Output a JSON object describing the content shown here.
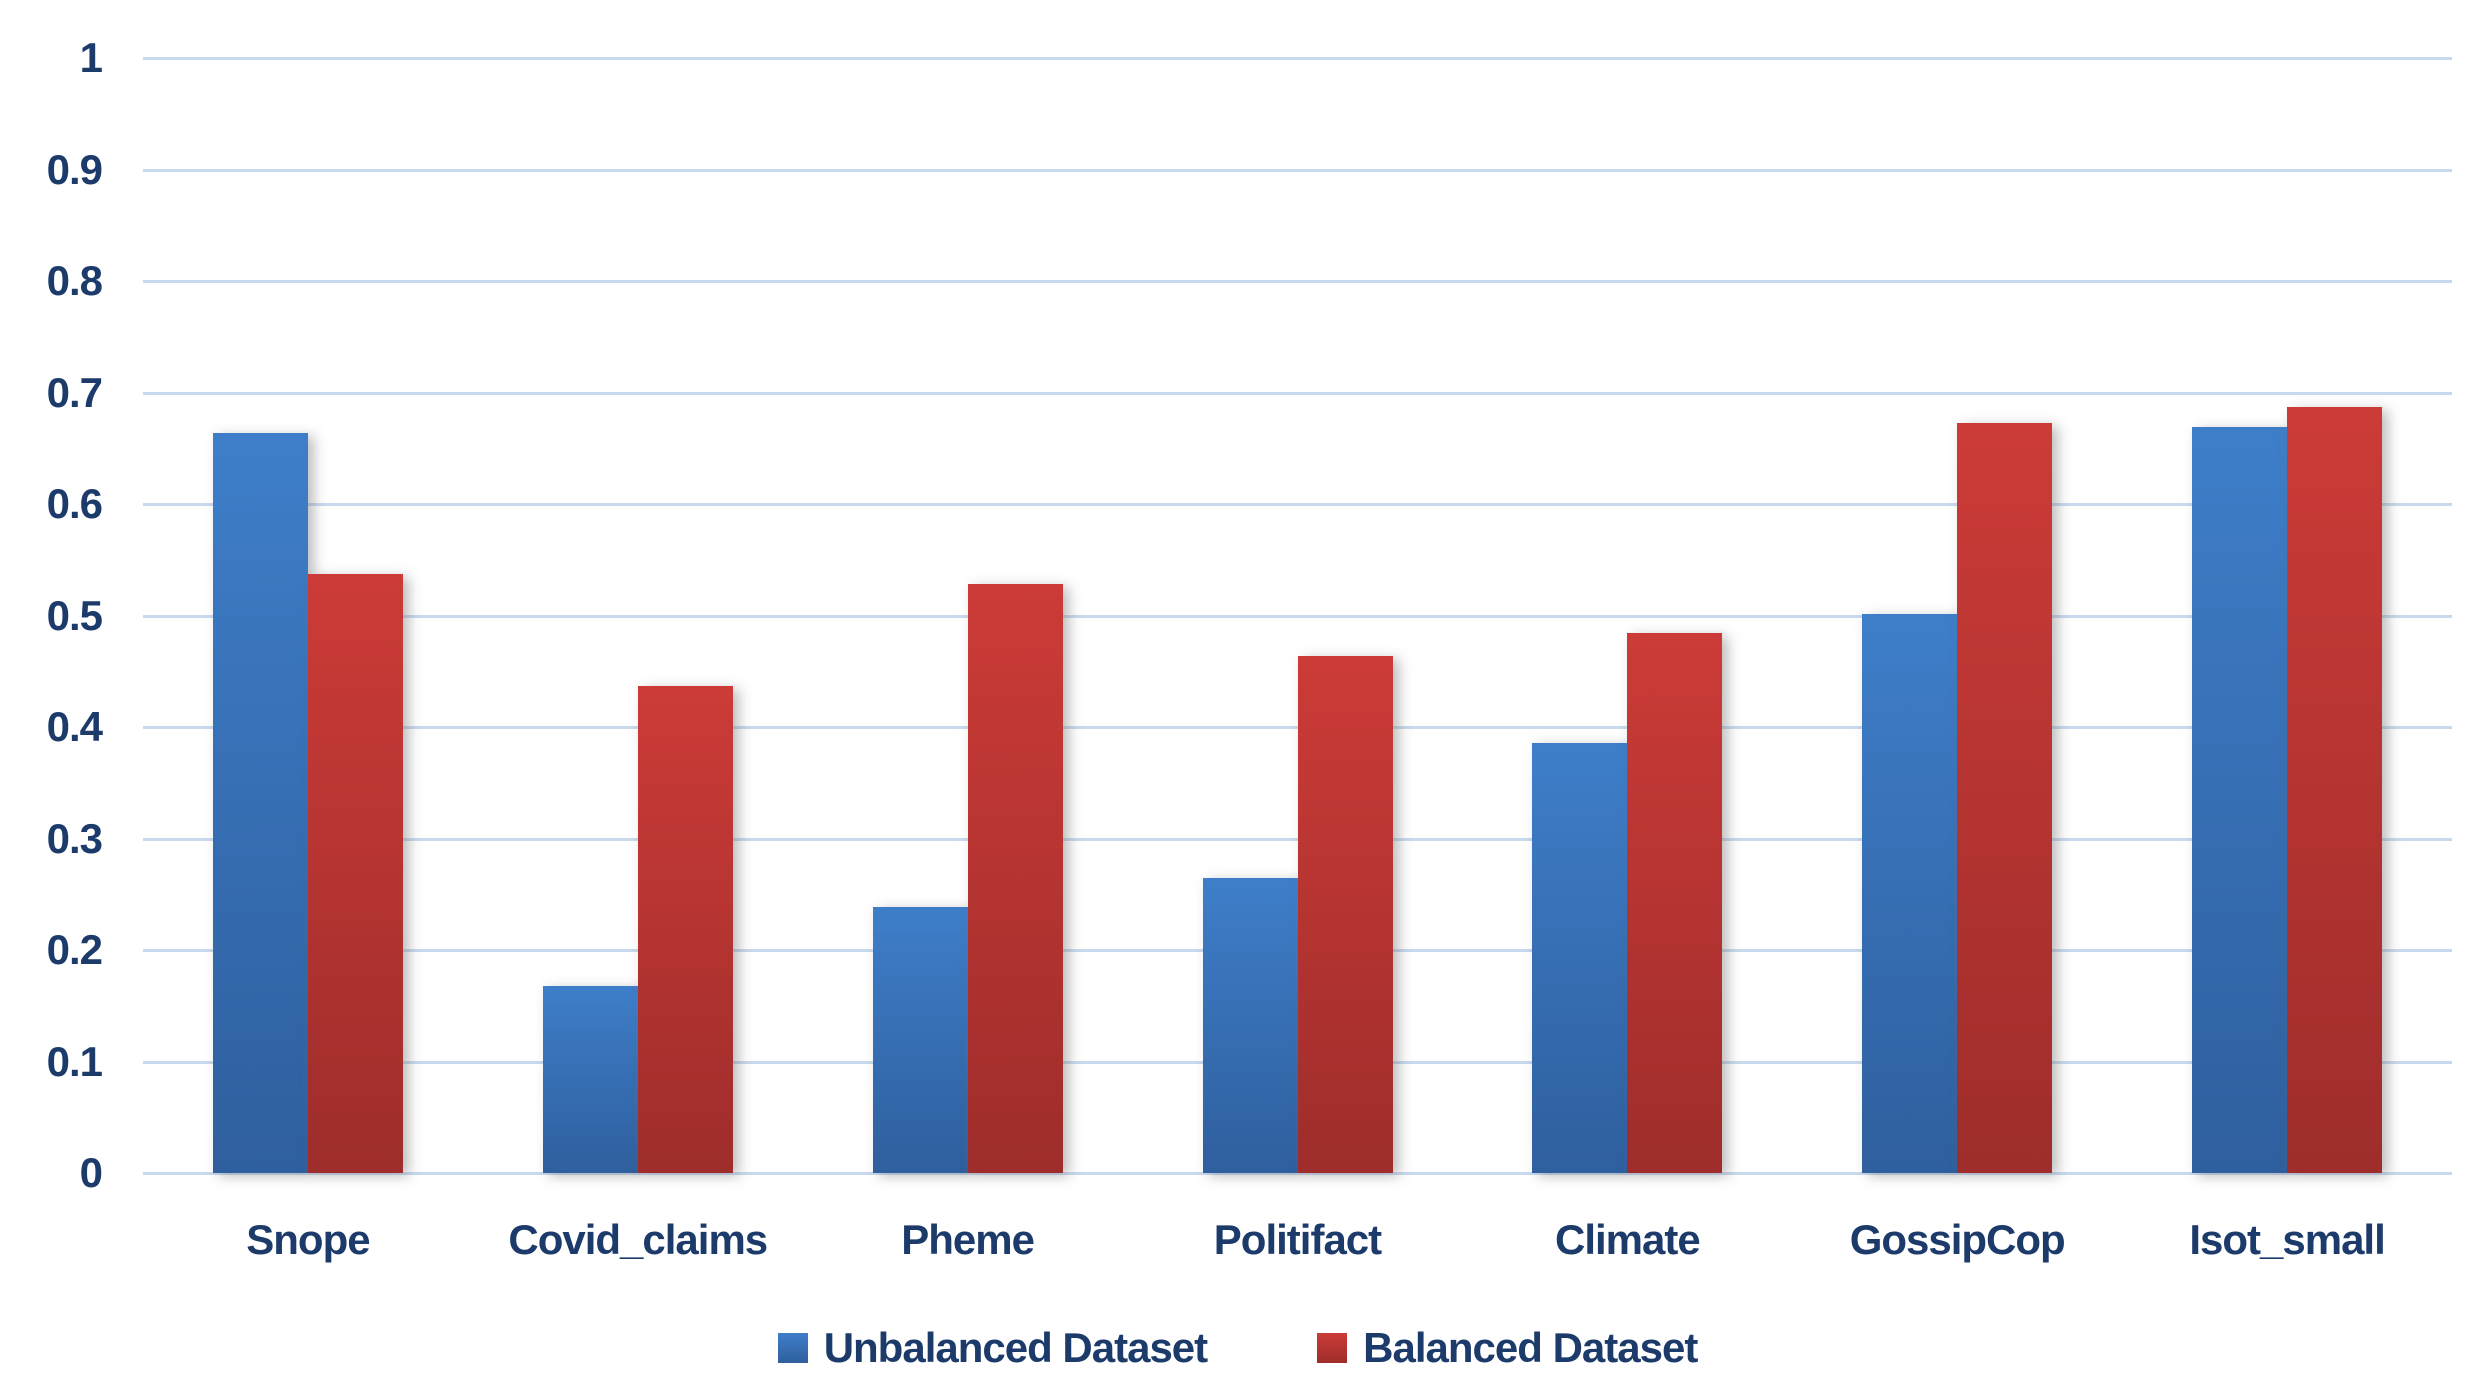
{
  "chart_data": {
    "type": "bar",
    "title": "",
    "xlabel": "",
    "ylabel": "",
    "categories": [
      "Snope",
      "Covid_claims",
      "Pheme",
      "Politifact",
      "Climate",
      "GossipCop",
      "Isot_small"
    ],
    "series": [
      {
        "name": "Unbalanced Dataset",
        "color_top": "#3E7EC9",
        "color_bottom": "#2F5F9E",
        "values": [
          0.664,
          0.168,
          0.239,
          0.265,
          0.386,
          0.501,
          0.669
        ]
      },
      {
        "name": "Balanced Dataset",
        "color_top": "#CC3B37",
        "color_bottom": "#9E2D2B",
        "values": [
          0.537,
          0.437,
          0.528,
          0.464,
          0.484,
          0.673,
          0.687
        ]
      }
    ],
    "ylim": [
      0,
      1
    ],
    "yticks": [
      "0",
      "0.1",
      "0.2",
      "0.3",
      "0.4",
      "0.5",
      "0.6",
      "0.7",
      "0.8",
      "0.9",
      "1"
    ],
    "grid": true,
    "legend_position": "bottom"
  },
  "colors": {
    "text": "#1C3B6B",
    "gridline": "#C8D9EE",
    "background": "#FFFFFF"
  }
}
